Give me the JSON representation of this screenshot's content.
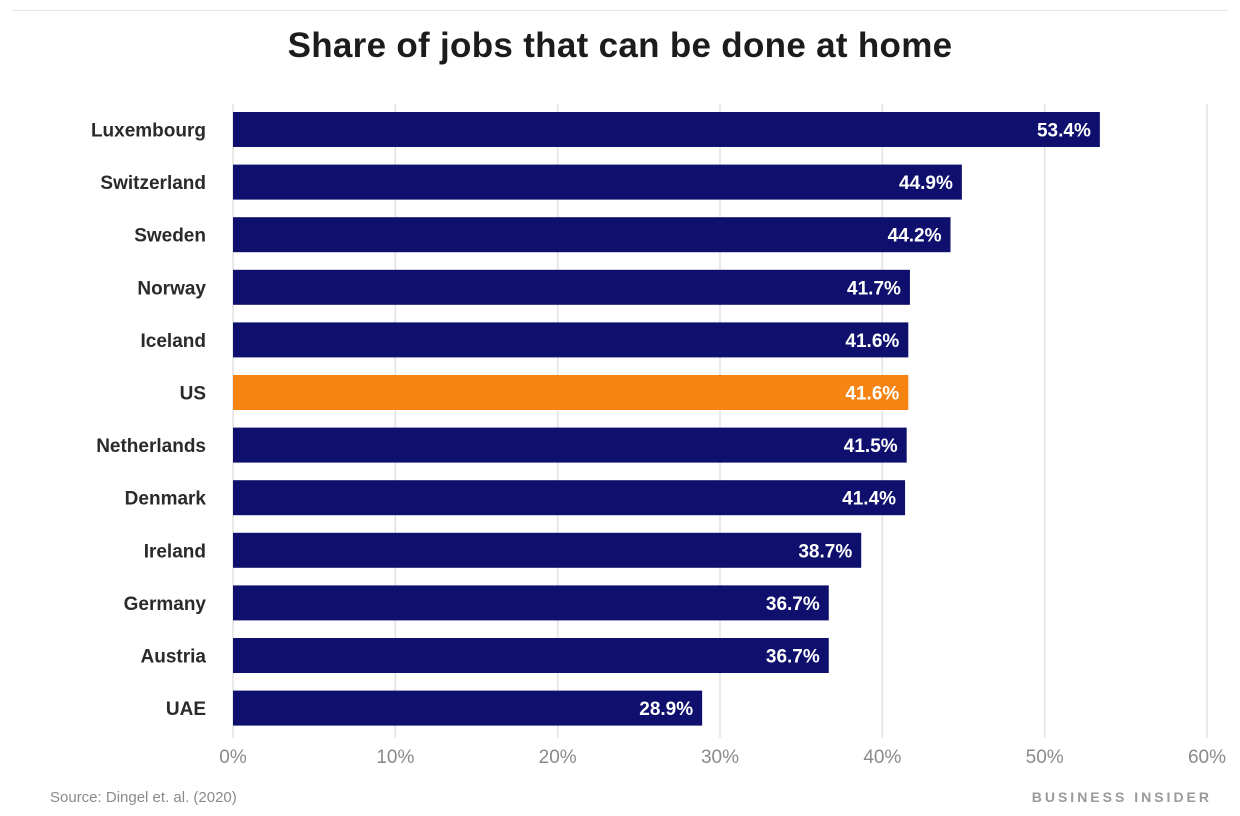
{
  "chart_data": {
    "type": "bar",
    "orientation": "horizontal",
    "title": "Share of jobs that can be done at home",
    "categories": [
      "Luxembourg",
      "Switzerland",
      "Sweden",
      "Norway",
      "Iceland",
      "US",
      "Netherlands",
      "Denmark",
      "Ireland",
      "Germany",
      "Austria",
      "UAE"
    ],
    "values": [
      53.4,
      44.9,
      44.2,
      41.7,
      41.6,
      41.6,
      41.5,
      41.4,
      38.7,
      36.7,
      36.7,
      28.9
    ],
    "value_labels": [
      "53.4%",
      "44.9%",
      "44.2%",
      "41.7%",
      "41.6%",
      "41.6%",
      "41.5%",
      "41.4%",
      "38.7%",
      "36.7%",
      "36.7%",
      "28.9%"
    ],
    "xlim": [
      0,
      60
    ],
    "xticks": [
      0,
      10,
      20,
      30,
      40,
      50,
      60
    ],
    "xtick_labels": [
      "0%",
      "10%",
      "20%",
      "30%",
      "40%",
      "50%",
      "60%"
    ],
    "grid": true,
    "highlight_category": "US",
    "colors": {
      "bar": "#0f0f6e",
      "highlight": "#f58412"
    }
  },
  "footer": {
    "source": "Source: Dingel et. al. (2020)",
    "brand": "BUSINESS INSIDER"
  }
}
